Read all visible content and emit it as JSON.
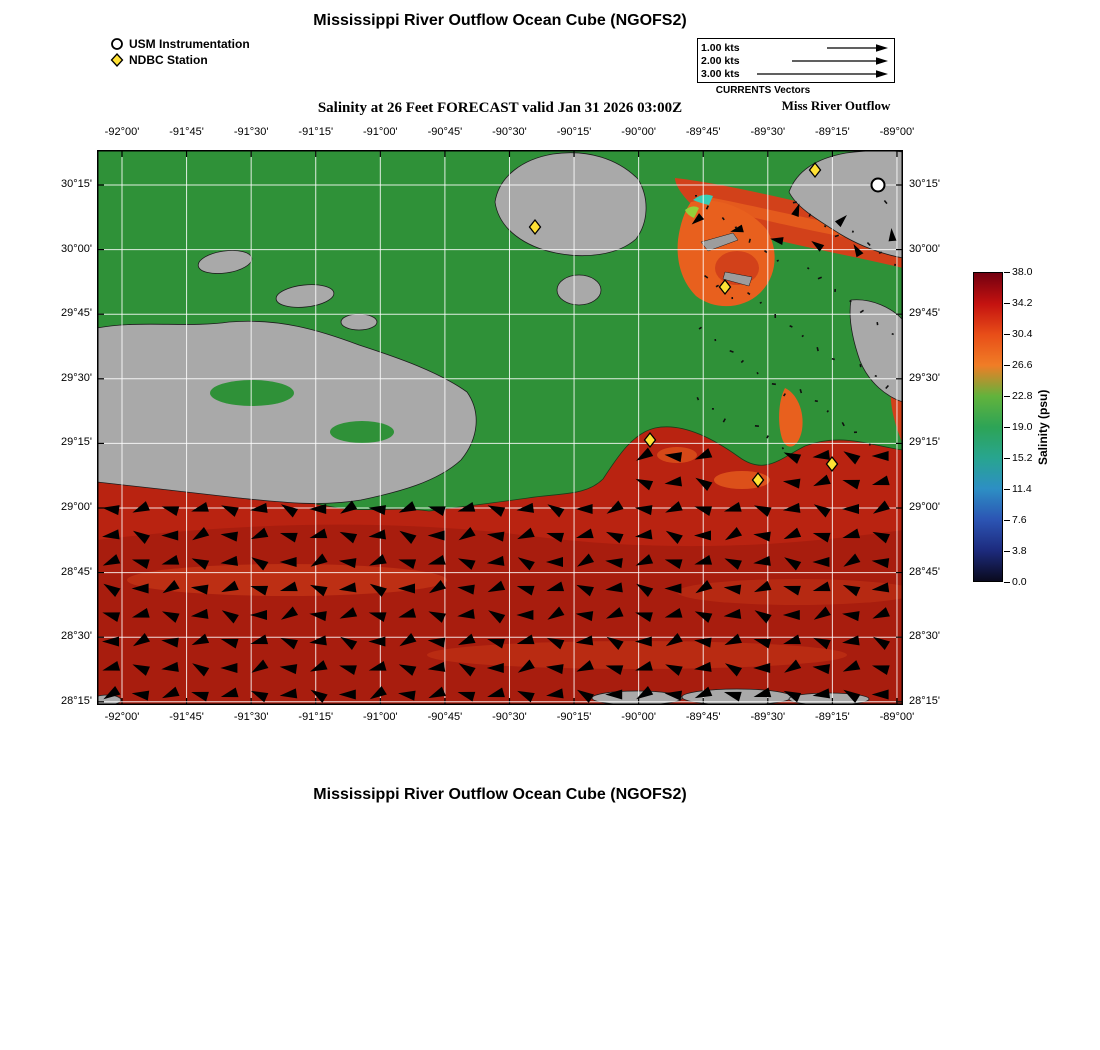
{
  "titles": {
    "top": "Mississippi River Outflow Ocean Cube (NGOFS2)",
    "subtitle": "Salinity at 26 Feet FORECAST valid Jan 31 2026 03:00Z",
    "bottom": "Mississippi River Outflow Ocean Cube (NGOFS2)"
  },
  "legend": {
    "usm_label": "USM Instrumentation",
    "ndbc_label": "NDBC Station"
  },
  "vector_scale": {
    "entries": [
      {
        "label": "1.00 kts",
        "length": 50
      },
      {
        "label": "2.00 kts",
        "length": 85
      },
      {
        "label": "3.00 kts",
        "length": 120
      }
    ],
    "caption": "CURRENTS Vectors",
    "region_label": "Miss River Outflow"
  },
  "axes": {
    "lon_ticks": [
      "-92°00'",
      "-91°45'",
      "-91°30'",
      "-91°15'",
      "-91°00'",
      "-90°45'",
      "-90°30'",
      "-90°15'",
      "-90°00'",
      "-89°45'",
      "-89°30'",
      "-89°15'",
      "-89°00'"
    ],
    "lat_ticks": [
      "30°15'",
      "30°00'",
      "29°45'",
      "29°30'",
      "29°15'",
      "29°00'",
      "28°45'",
      "28°30'",
      "28°15'"
    ]
  },
  "colorbar": {
    "title": "Salinity (psu)",
    "ticks": [
      "38.0",
      "34.2",
      "30.4",
      "26.6",
      "22.8",
      "19.0",
      "15.2",
      "11.4",
      "7.6",
      "3.8",
      "0.0"
    ],
    "colors": [
      "#730010",
      "#c41210",
      "#e84e18",
      "#f07d26",
      "#62b33c",
      "#2da456",
      "#28a58f",
      "#2d8fc4",
      "#2c55b4",
      "#1d2b7e",
      "#0a0a1e"
    ]
  },
  "map": {
    "land_color": "#2f9138",
    "nodata_color": "#a9a9a9",
    "water_color": "#b92311",
    "water_color_deep": "#a81d0e",
    "water_color_light": "#d2411a",
    "plume_color": "#e8601e",
    "vector_color": "#000000",
    "marker_colors": {
      "ndbc": "#ffe135",
      "usm": "#ffffff"
    },
    "ndbc_stations": [
      [
        438,
        77
      ],
      [
        718,
        20
      ],
      [
        628,
        137
      ],
      [
        553,
        290
      ],
      [
        661,
        330
      ],
      [
        735,
        314
      ]
    ],
    "usm_stations": [
      [
        781,
        35
      ]
    ]
  }
}
